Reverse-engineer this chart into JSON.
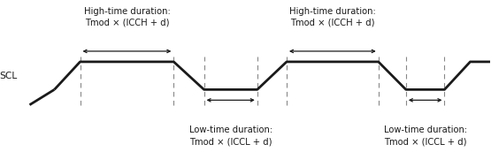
{
  "fig_width": 5.55,
  "fig_height": 1.72,
  "dpi": 100,
  "bg_color": "#ffffff",
  "scl_label": "SCL",
  "high_label_line1": "High-time duration:",
  "high_label_line2": "Tmod × (ICCH + d)",
  "low_label_line1": "Low-time duration:",
  "low_label_line2": "Tmod × (ICCL + d)",
  "waveform_color": "#1a1a1a",
  "dash_color": "#888888",
  "arrow_color": "#1a1a1a",
  "dot_color": "#1a1a1a",
  "waveform_lw": 2.0,
  "dash_lw": 0.8,
  "arrow_lw": 0.9,
  "font_size": 7.2,
  "xlim": [
    0.0,
    10.0
  ],
  "ylim": [
    -2.2,
    3.2
  ]
}
